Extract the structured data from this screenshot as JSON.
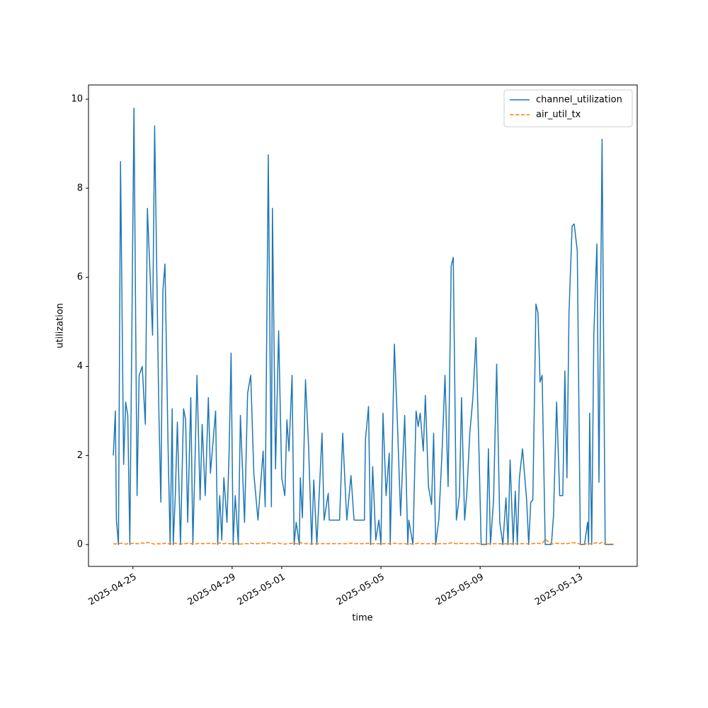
{
  "chart_data": {
    "type": "line",
    "xlabel": "time",
    "ylabel": "utilization",
    "x": [
      "2025-04-24 05:00",
      "2025-04-24 07:00",
      "2025-04-24 08:00",
      "2025-04-24 10:00",
      "2025-04-24 12:00",
      "2025-04-24 15:00",
      "2025-04-24 17:00",
      "2025-04-24 19:00",
      "2025-04-24 21:00",
      "2025-04-25 01:00",
      "2025-04-25 04:00",
      "2025-04-25 06:00",
      "2025-04-25 09:00",
      "2025-04-25 12:00",
      "2025-04-25 14:00",
      "2025-04-25 19:00",
      "2025-04-25 21:00",
      "2025-04-26 01:00",
      "2025-04-26 03:00",
      "2025-04-26 05:00",
      "2025-04-26 07:00",
      "2025-04-26 10:00",
      "2025-04-26 12:00",
      "2025-04-26 14:00",
      "2025-04-26 15:00",
      "2025-04-26 17:00",
      "2025-04-26 19:00",
      "2025-04-26 22:00",
      "2025-04-27 01:00",
      "2025-04-27 03:00",
      "2025-04-27 05:00",
      "2025-04-27 08:00",
      "2025-04-27 10:00",
      "2025-04-27 12:00",
      "2025-04-27 14:00",
      "2025-04-27 17:00",
      "2025-04-27 19:00",
      "2025-04-27 22:00",
      "2025-04-28 01:00",
      "2025-04-28 03:00",
      "2025-04-28 08:00",
      "2025-04-28 10:00",
      "2025-04-28 12:00",
      "2025-04-28 14:00",
      "2025-04-28 16:00",
      "2025-04-28 19:00",
      "2025-04-28 21:00",
      "2025-04-28 23:00",
      "2025-04-29 01:00",
      "2025-04-29 03:00",
      "2025-04-29 06:00",
      "2025-04-29 08:00",
      "2025-04-29 12:00",
      "2025-04-29 15:00",
      "2025-04-29 18:00",
      "2025-04-29 21:00",
      "2025-04-30 01:00",
      "2025-04-30 06:00",
      "2025-04-30 08:00",
      "2025-04-30 11:00",
      "2025-04-30 14:00",
      "2025-04-30 15:00",
      "2025-04-30 18:00",
      "2025-04-30 21:00",
      "2025-05-01 00:00",
      "2025-05-01 03:00",
      "2025-05-01 05:00",
      "2025-05-01 07:00",
      "2025-05-01 10:00",
      "2025-05-01 12:00",
      "2025-05-01 14:00",
      "2025-05-01 17:00",
      "2025-05-01 18:00",
      "2025-05-01 20:00",
      "2025-05-01 23:00",
      "2025-05-02 02:00",
      "2025-05-02 05:00",
      "2025-05-02 07:00",
      "2025-05-02 10:00",
      "2025-05-02 15:00",
      "2025-05-02 17:00",
      "2025-05-02 21:00",
      "2025-05-02 22:00",
      "2025-05-03 08:00",
      "2025-05-03 11:00",
      "2025-05-03 14:00",
      "2025-05-03 15:00",
      "2025-05-03 19:00",
      "2025-05-03 22:00",
      "2025-05-04 08:00",
      "2025-05-04 09:00",
      "2025-05-04 12:00",
      "2025-05-04 14:00",
      "2025-05-04 16:00",
      "2025-05-04 19:00",
      "2025-05-04 22:00",
      "2025-05-05 00:00",
      "2025-05-05 02:00",
      "2025-05-05 05:00",
      "2025-05-05 08:00",
      "2025-05-05 09:00",
      "2025-05-05 13:00",
      "2025-05-05 16:00",
      "2025-05-05 19:00",
      "2025-05-05 23:00",
      "2025-05-06 02:00",
      "2025-05-06 03:00",
      "2025-05-06 07:00",
      "2025-05-06 10:00",
      "2025-05-06 12:00",
      "2025-05-06 14:00",
      "2025-05-06 17:00",
      "2025-05-06 19:00",
      "2025-05-06 22:00",
      "2025-05-07 01:00",
      "2025-05-07 03:00",
      "2025-05-07 05:00",
      "2025-05-07 08:00",
      "2025-05-07 11:00",
      "2025-05-07 14:00",
      "2025-05-07 17:00",
      "2025-05-07 20:00",
      "2025-05-07 22:00",
      "2025-05-08 01:00",
      "2025-05-08 04:00",
      "2025-05-08 06:00",
      "2025-05-08 09:00",
      "2025-05-08 11:00",
      "2025-05-08 14:00",
      "2025-05-08 17:00",
      "2025-05-08 20:00",
      "2025-05-08 23:00",
      "2025-05-09 01:00",
      "2025-05-09 06:00",
      "2025-05-09 08:00",
      "2025-05-09 10:00",
      "2025-05-09 13:00",
      "2025-05-09 16:00",
      "2025-05-09 19:00",
      "2025-05-09 22:00",
      "2025-05-10 01:00",
      "2025-05-10 03:00",
      "2025-05-10 05:00",
      "2025-05-10 08:00",
      "2025-05-10 10:00",
      "2025-05-10 12:00",
      "2025-05-10 14:00",
      "2025-05-10 17:00",
      "2025-05-10 21:00",
      "2025-05-10 23:00",
      "2025-05-11 01:00",
      "2025-05-11 03:00",
      "2025-05-11 06:00",
      "2025-05-11 08:00",
      "2025-05-11 10:00",
      "2025-05-11 12:00",
      "2025-05-11 15:00",
      "2025-05-11 21:00",
      "2025-05-11 23:00",
      "2025-05-12 02:00",
      "2025-05-12 05:00",
      "2025-05-12 08:00",
      "2025-05-12 10:00",
      "2025-05-12 12:00",
      "2025-05-12 14:00",
      "2025-05-12 17:00",
      "2025-05-12 19:00",
      "2025-05-12 22:00",
      "2025-05-13 01:00",
      "2025-05-13 05:00",
      "2025-05-13 08:00",
      "2025-05-13 09:00",
      "2025-05-13 10:00",
      "2025-05-13 12:00",
      "2025-05-13 14:00",
      "2025-05-13 17:00",
      "2025-05-13 19:00",
      "2025-05-13 22:00",
      "2025-05-14 01:00",
      "2025-05-14 09:00"
    ],
    "series": [
      {
        "name": "channel_utilization",
        "color": "#1f77b4",
        "dashed": false,
        "values": [
          2.0,
          3.0,
          0.55,
          0,
          8.6,
          1.8,
          3.2,
          2.9,
          0,
          9.8,
          1.1,
          3.8,
          4.0,
          2.7,
          7.55,
          4.7,
          9.4,
          3.1,
          0.95,
          5.7,
          6.3,
          2.2,
          0,
          3.05,
          0,
          1.1,
          2.75,
          0,
          3.05,
          2.8,
          0.5,
          3.3,
          0,
          1.8,
          3.8,
          1.0,
          2.7,
          1.1,
          3.3,
          1.6,
          3.0,
          0,
          1.1,
          0.1,
          1.5,
          0.5,
          2.0,
          4.3,
          0,
          1.1,
          0,
          2.9,
          0.5,
          3.4,
          3.8,
          1.6,
          0.55,
          2.1,
          0.85,
          8.75,
          0.85,
          7.55,
          1.7,
          4.8,
          1.5,
          1.1,
          2.8,
          2.1,
          3.8,
          0,
          0.5,
          0,
          1.5,
          0.6,
          3.7,
          2.2,
          0,
          1.45,
          0,
          2.5,
          0.55,
          1.15,
          0.55,
          0.55,
          2.5,
          1.0,
          0.55,
          1.55,
          0.55,
          0.55,
          2.35,
          3.1,
          0,
          1.75,
          0.1,
          0.55,
          0,
          2.95,
          1.1,
          2.05,
          0,
          4.5,
          2.7,
          0.65,
          2.9,
          0,
          0.55,
          0,
          3.0,
          2.65,
          2.95,
          2.1,
          3.35,
          1.3,
          0.9,
          2.5,
          0,
          0.55,
          2.0,
          3.8,
          1.3,
          6.25,
          6.45,
          0.55,
          1.1,
          3.3,
          0.55,
          1.1,
          2.5,
          3.3,
          4.65,
          2.0,
          0,
          0,
          2.15,
          0,
          1.0,
          4.05,
          0.5,
          0,
          1.05,
          0,
          1.9,
          0,
          1.2,
          0,
          1.5,
          2.15,
          1.0,
          0,
          0.95,
          1.0,
          5.4,
          5.2,
          3.65,
          3.8,
          0,
          0,
          0.65,
          3.2,
          1.1,
          1.1,
          3.9,
          1.5,
          5.2,
          7.15,
          7.2,
          6.6,
          0,
          0,
          0.5,
          0,
          2.95,
          0,
          4.7,
          6.75,
          1.4,
          9.1,
          0,
          0
        ]
      },
      {
        "name": "air_util_tx",
        "color": "#ff7f0e",
        "dashed": true,
        "values": [
          0.02,
          0.01,
          0.02,
          0.02,
          0.03,
          0.02,
          0.01,
          0.02,
          0.02,
          0.03,
          0.02,
          0.02,
          0.04,
          0.02,
          0.05,
          0.02,
          0.01,
          0.02,
          0.01,
          0.02,
          0.03,
          0.02,
          0.01,
          0.02,
          0.02,
          0.03,
          0.02,
          0.01,
          0.02,
          0.02,
          0.03,
          0.02,
          0.02,
          0.01,
          0.02,
          0.03,
          0.02,
          0.02,
          0.03,
          0.02,
          0.02,
          0.01,
          0.04,
          0.02,
          0.02,
          0.03,
          0.02,
          0.02,
          0.01,
          0.02,
          0.02,
          0.01,
          0.02,
          0.02,
          0.03,
          0.02,
          0.02,
          0.03,
          0.02,
          0.04,
          0.03,
          0.02,
          0.02,
          0.03,
          0.02,
          0.01,
          0.02,
          0.02,
          0.03,
          0.02,
          0.02,
          0.01,
          0.05,
          0.02,
          0.02,
          0.02,
          0.01,
          0.02,
          0.02,
          0.02,
          0.02,
          0.02,
          0.02,
          0.02,
          0.02,
          0.02,
          0.02,
          0.03,
          0.02,
          0.02,
          0.02,
          0.03,
          0.01,
          0.02,
          0.02,
          0.02,
          0.01,
          0.02,
          0.02,
          0.02,
          0.01,
          0.03,
          0.02,
          0.02,
          0.02,
          0.01,
          0.02,
          0.01,
          0.02,
          0.03,
          0.02,
          0.02,
          0.02,
          0.02,
          0.02,
          0.02,
          0.01,
          0.02,
          0.02,
          0.02,
          0.02,
          0.04,
          0.03,
          0.02,
          0.02,
          0.03,
          0.02,
          0.02,
          0.02,
          0.02,
          0.03,
          0.02,
          0.01,
          0.01,
          0.02,
          0.01,
          0.02,
          0.02,
          0.02,
          0.01,
          0.02,
          0.01,
          0.02,
          0.01,
          0.02,
          0.01,
          0.02,
          0.02,
          0.02,
          0.01,
          0.02,
          0.02,
          0.03,
          0.03,
          0.02,
          0.02,
          0.12,
          0.01,
          0.02,
          0.03,
          0.02,
          0.02,
          0.03,
          0.02,
          0.03,
          0.04,
          0.04,
          0.03,
          0.01,
          0.01,
          0.02,
          0.01,
          0.02,
          0.01,
          0.03,
          0.04,
          0.02,
          0.05,
          0.01,
          0.01
        ]
      }
    ],
    "xlim": [
      "2025-04-23 05:00",
      "2025-05-15 08:00"
    ],
    "xticks": [
      "2025-04-25",
      "2025-04-29",
      "2025-05-01",
      "2025-05-05",
      "2025-05-09",
      "2025-05-13"
    ],
    "ylim": [
      -0.49,
      10.32
    ],
    "yticks": [
      0,
      2,
      4,
      6,
      8,
      10
    ],
    "grid": false,
    "legend": "upper right"
  }
}
